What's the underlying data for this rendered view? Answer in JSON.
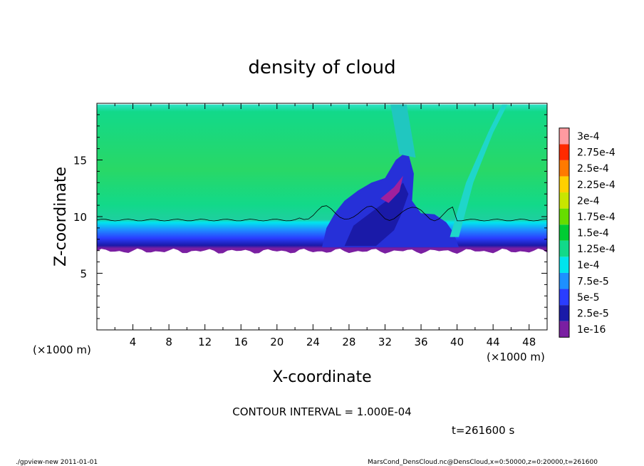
{
  "chart_data": {
    "type": "heatmap",
    "title": "density of cloud",
    "xlabel": "X-coordinate",
    "ylabel": "Z-coordinate",
    "x_unit_left": "(×1000 m)",
    "x_unit_right": "(×1000 m)",
    "xlim": [
      0,
      50
    ],
    "ylim": [
      0,
      20
    ],
    "x_ticks": [
      4,
      8,
      12,
      16,
      20,
      24,
      28,
      32,
      36,
      40,
      44,
      48
    ],
    "y_ticks": [
      5,
      10,
      15
    ],
    "colorbar": {
      "labels": [
        "1e-16",
        "2.5e-5",
        "5e-5",
        "7.5e-5",
        "1e-4",
        "1.25e-4",
        "1.5e-4",
        "1.75e-4",
        "2e-4",
        "2.25e-4",
        "2.5e-4",
        "2.75e-4",
        "3e-4"
      ],
      "colors": [
        "#7a1fa2",
        "#1a1aa8",
        "#2a3dff",
        "#1e90ff",
        "#00e5ee",
        "#12d98a",
        "#00cc33",
        "#66dd00",
        "#c8e600",
        "#ffd000",
        "#ff7a00",
        "#ff2a00",
        "#ff9aa0"
      ]
    },
    "contour_interval_label": "CONTOUR INTERVAL = 1.000E-04",
    "time_label": "t=261600 s",
    "cloud_base_z": 7.2,
    "cloud_top_z": 19.9,
    "field": {
      "upper_layer_value": 0.000135,
      "mid_layer_value": 0.0001,
      "lower_layer_value": 2.5e-05,
      "transition_z": 9.7
    }
  },
  "footer": {
    "left": "./gpview-new   2011-01-01",
    "right": "MarsCond_DensCloud.nc@DensCloud,x=0:50000,z=0:20000,t=261600"
  }
}
